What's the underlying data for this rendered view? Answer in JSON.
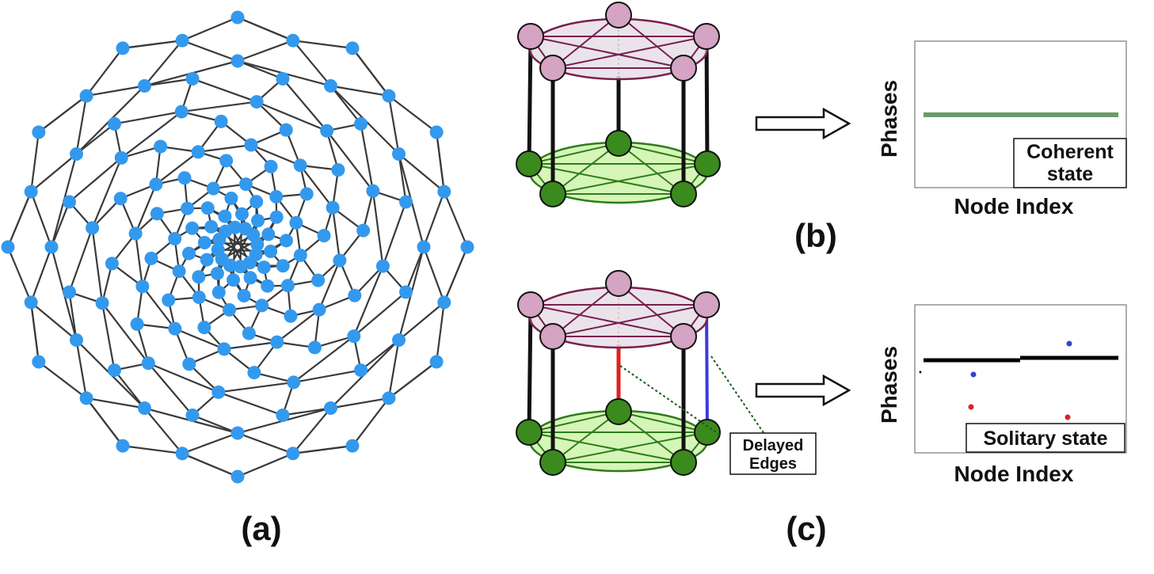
{
  "panels": {
    "a": {
      "label": "(a)"
    },
    "b": {
      "label": "(b)"
    },
    "c": {
      "label": "(c)"
    }
  },
  "plots": {
    "coherent": {
      "ylabel": "Phases",
      "xlabel": "Node Index",
      "state_lines": [
        "Coherent",
        "state"
      ]
    },
    "solitary": {
      "ylabel": "Phases",
      "xlabel": "Node Index",
      "state_label": "Solitary state"
    }
  },
  "annotations": {
    "delayed_edges_lines": [
      "Delayed",
      "Edges"
    ]
  },
  "colors": {
    "network_node": "#3399ee",
    "top_layer_node": "#d5a3c3",
    "top_layer_fill": "#e6dfe6",
    "top_layer_edge": "#7a1f4e",
    "bottom_layer_node": "#3a8a1e",
    "bottom_layer_fill": "#d6f5b8",
    "bottom_layer_edge": "#2e7d1a",
    "coherent_line": "#6a9a6a",
    "delayed_edge_red": "#e02020",
    "delayed_edge_blue": "#3a3ae0"
  }
}
